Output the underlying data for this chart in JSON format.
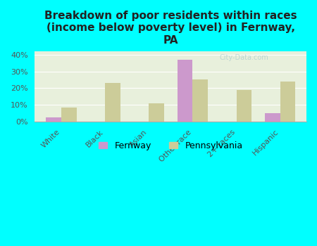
{
  "title": "Breakdown of poor residents within races\n(income below poverty level) in Fernway,\nPA",
  "categories": [
    "White",
    "Black",
    "Asian",
    "Other race",
    "2+ races",
    "Hispanic"
  ],
  "fernway_values": [
    2.5,
    0,
    0,
    37,
    0,
    5
  ],
  "pennsylvania_values": [
    8.5,
    23,
    11,
    25,
    19,
    24
  ],
  "fernway_color": "#cc99cc",
  "pennsylvania_color": "#cccc99",
  "background_color": "#00ffff",
  "ylim": [
    0,
    42
  ],
  "yticks": [
    0,
    10,
    20,
    30,
    40
  ],
  "ytick_labels": [
    "0%",
    "10%",
    "20%",
    "30%",
    "40%"
  ],
  "bar_width": 0.35,
  "title_fontsize": 11,
  "tick_fontsize": 8,
  "legend_fontsize": 9
}
